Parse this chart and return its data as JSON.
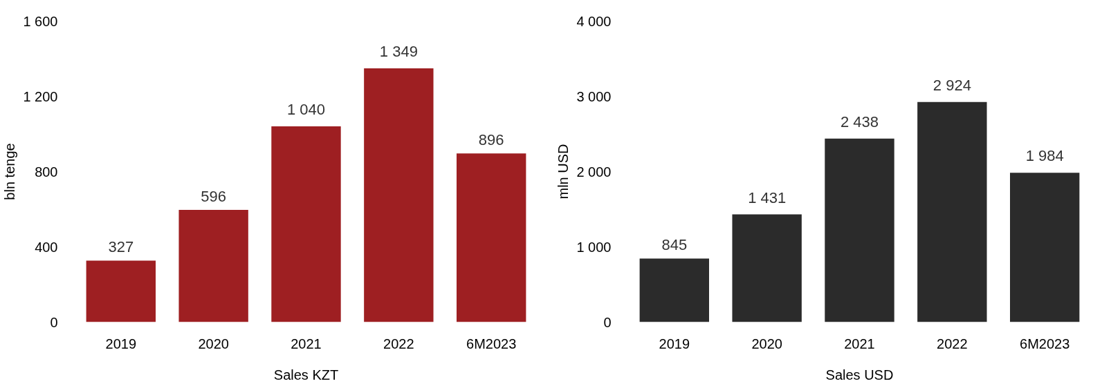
{
  "chart_data": [
    {
      "type": "bar",
      "xlabel": "Sales KZT",
      "ylabel": "bln tenge",
      "categories": [
        "2019",
        "2020",
        "2021",
        "2022",
        "6M2023"
      ],
      "series": [
        {
          "color": "#9e1f22",
          "values": [
            327,
            596,
            1040,
            1349,
            896
          ]
        }
      ],
      "value_labels": [
        "327",
        "596",
        "1 040",
        "1 349",
        "896"
      ],
      "ylim": [
        0,
        1600
      ],
      "yticks": [
        0,
        {
          "value": 400,
          "label": "400"
        },
        {
          "value": 800,
          "label": "800"
        },
        {
          "value": 1200,
          "label": "1 200"
        },
        {
          "value": 1600,
          "label": "1 600"
        }
      ]
    },
    {
      "type": "bar",
      "xlabel": "Sales USD",
      "ylabel": "mln USD",
      "categories": [
        "2019",
        "2020",
        "2021",
        "2022",
        "6M2023"
      ],
      "series": [
        {
          "color": "#2b2b2b",
          "values": [
            845,
            1431,
            2438,
            2924,
            1984
          ]
        }
      ],
      "value_labels": [
        "845",
        "1 431",
        "2 438",
        "2 924",
        "1 984"
      ],
      "ylim": [
        0,
        4000
      ],
      "yticks": [
        0,
        {
          "value": 1000,
          "label": "1 000"
        },
        {
          "value": 2000,
          "label": "2 000"
        },
        {
          "value": 3000,
          "label": "3 000"
        },
        {
          "value": 4000,
          "label": "4 000"
        }
      ]
    }
  ]
}
